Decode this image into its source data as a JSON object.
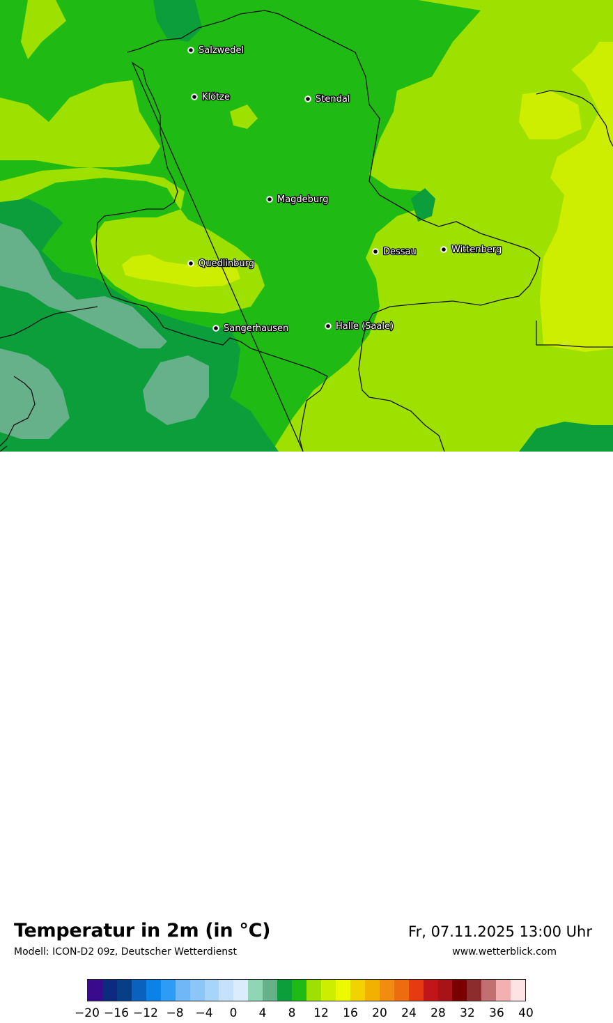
{
  "map": {
    "colors": {
      "t4": "#66b08a",
      "t6": "#0b9e3a",
      "t8": "#1fbb14",
      "t10": "#9ee000",
      "t12": "#cdee00"
    },
    "cities": [
      {
        "id": "salzwedel",
        "name": "Salzwedel"
      },
      {
        "id": "kloetze",
        "name": "Klötze"
      },
      {
        "id": "stendal",
        "name": "Stendal"
      },
      {
        "id": "magdeburg",
        "name": "Magdeburg"
      },
      {
        "id": "dessau",
        "name": "Dessau"
      },
      {
        "id": "wittenberg",
        "name": "Wittenberg"
      },
      {
        "id": "quedlinburg",
        "name": "Quedlinburg"
      },
      {
        "id": "sangerhausen",
        "name": "Sangerhausen"
      },
      {
        "id": "halle",
        "name": "Halle (Saale)"
      }
    ]
  },
  "footer": {
    "title": "Temperatur in 2m (in °C)",
    "subtitle": "Modell: ICON-D2 09z, Deutscher Wetterdienst",
    "datetime": "Fr, 07.11.2025 13:00 Uhr",
    "website": "www.wetterblick.com"
  },
  "legend": {
    "colors": [
      "#3a0a8c",
      "#0d2a7e",
      "#063f86",
      "#0a62be",
      "#0b83e6",
      "#2d9cf5",
      "#6fb7f7",
      "#8cc6f8",
      "#a7d4f9",
      "#c4e2fb",
      "#dbecfc",
      "#8fd6b4",
      "#66b08a",
      "#0b9e3a",
      "#1fbb14",
      "#9ee000",
      "#cdee00",
      "#eef900",
      "#f2d100",
      "#f2b000",
      "#f08c10",
      "#ee6c10",
      "#e63a10",
      "#c0161a",
      "#a81318",
      "#7a0000",
      "#8c2c2c",
      "#c07070",
      "#f2b0b0",
      "#fde3e3"
    ],
    "tick_labels": [
      "−20",
      "−16",
      "−12",
      "−8",
      "−4",
      "0",
      "4",
      "8",
      "12",
      "16",
      "20",
      "24",
      "28",
      "32",
      "36",
      "40"
    ]
  }
}
